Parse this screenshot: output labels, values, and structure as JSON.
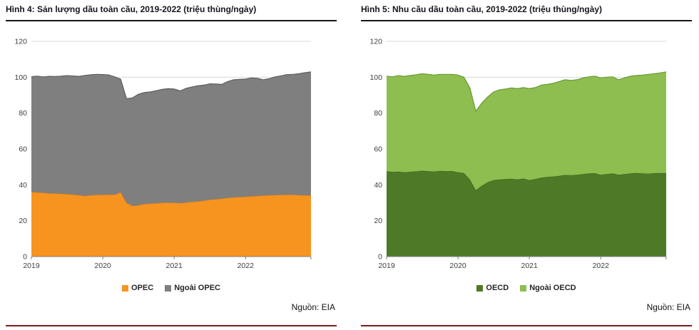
{
  "chart_data": [
    {
      "type": "area",
      "stacked": true,
      "title": "Hình 4: Sản lượng dầu toàn cầu, 2019-2022 (triệu thùng/ngày)",
      "source": "Nguồn: EIA",
      "x_tick_labels": [
        "2019",
        "2020",
        "2021",
        "2022"
      ],
      "points_per_year": 12,
      "ylim": [
        0,
        120
      ],
      "y_ticks": [
        0,
        20,
        40,
        60,
        80,
        100,
        120
      ],
      "legend_position": "bottom",
      "grid": "horizontal-major",
      "series": [
        {
          "name": "OPEC",
          "color": "#F79420",
          "edge": "#DE7E12",
          "values": [
            36,
            35.8,
            35.6,
            35.3,
            35.2,
            35,
            34.8,
            34.6,
            34.2,
            33.8,
            34.2,
            34.5,
            34.4,
            34.6,
            34.5,
            35.9,
            30,
            28.3,
            28.6,
            29.3,
            29.6,
            29.7,
            30,
            30.1,
            30,
            29.8,
            30.2,
            30.5,
            30.8,
            31.2,
            31.7,
            32,
            32.3,
            32.7,
            33,
            33.2,
            33.4,
            33.6,
            33.8,
            34,
            34.2,
            34.3,
            34.4,
            34.5,
            34.5,
            34.3,
            34.2,
            34.1
          ]
        },
        {
          "name": "Ngoài OPEC",
          "color": "#7F7F7F",
          "edge": "#5E5E5E",
          "values": [
            64.3,
            64.8,
            64.6,
            65.2,
            65.2,
            65.6,
            66.1,
            66.1,
            66.3,
            67.2,
            67.2,
            67.1,
            67.1,
            66.7,
            65.7,
            63.1,
            58,
            60.2,
            61.9,
            62.2,
            62.2,
            62.8,
            63.2,
            63.5,
            63.4,
            62.6,
            63.6,
            64.1,
            64.4,
            64.4,
            64.6,
            64.2,
            63.7,
            64.9,
            65.6,
            65.6,
            65.6,
            66,
            65.6,
            64.6,
            65,
            65.9,
            66.4,
            67,
            67.1,
            67.7,
            68.3,
            68.9
          ]
        }
      ]
    },
    {
      "type": "area",
      "stacked": true,
      "title": "Hình 5: Nhu cầu dầu toàn cầu, 2019-2022 (triệu thùng/ngày)",
      "source": "Nguồn: EIA",
      "x_tick_labels": [
        "2019",
        "2020",
        "2021",
        "2022"
      ],
      "points_per_year": 12,
      "ylim": [
        0,
        120
      ],
      "y_ticks": [
        0,
        20,
        40,
        60,
        80,
        100,
        120
      ],
      "legend_position": "bottom",
      "grid": "horizontal-major",
      "series": [
        {
          "name": "OECD",
          "color": "#4E7A27",
          "edge": "#3C611C",
          "values": [
            47.6,
            47.2,
            47.4,
            47,
            47.3,
            47.5,
            47.9,
            47.6,
            47.4,
            47.8,
            47.6,
            47.7,
            47,
            46.6,
            43,
            37,
            39.5,
            41.5,
            42.6,
            43,
            43.2,
            43.4,
            43,
            43.5,
            42.6,
            43.2,
            44,
            44.4,
            44.6,
            45,
            45.5,
            45.4,
            45.6,
            46,
            46.4,
            46.5,
            45.6,
            46,
            46.4,
            45.6,
            46,
            46.4,
            46.6,
            46.4,
            46.2,
            46.5,
            46.6,
            46.6
          ]
        },
        {
          "name": "Ngoài OECD",
          "color": "#8FBE50",
          "edge": "#679934",
          "values": [
            53,
            53,
            53.5,
            53.5,
            53.7,
            53.9,
            54.1,
            54,
            53.8,
            53.8,
            54,
            53.9,
            54.2,
            53.4,
            51,
            44,
            46,
            47.5,
            49.2,
            50,
            50.2,
            50.6,
            50.6,
            50.7,
            51,
            51,
            51.6,
            51.6,
            52,
            52.6,
            53.1,
            52.8,
            53,
            53.6,
            53.8,
            54.1,
            54,
            54,
            53.8,
            53,
            53.6,
            54.2,
            54.4,
            54.8,
            55.4,
            55.5,
            55.8,
            56.4
          ]
        }
      ]
    }
  ]
}
